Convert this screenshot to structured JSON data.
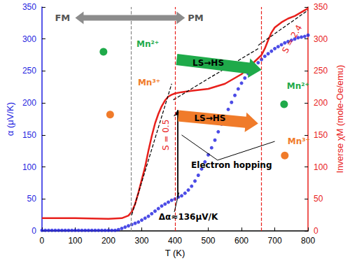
{
  "chart_data": {
    "type": "line",
    "x_label": "T (K)",
    "y_label": "α (μV/K)",
    "y2_label": "Inverse χM (mole-Oe/emu)",
    "xlim": [
      0,
      800
    ],
    "xticks": [
      0,
      100,
      200,
      300,
      400,
      500,
      600,
      700,
      800
    ],
    "ylim": [
      0,
      350
    ],
    "yticks": [
      0,
      50,
      100,
      150,
      200,
      250,
      300,
      350
    ],
    "y2lim": [
      0,
      350
    ],
    "y2ticks": [
      0,
      50,
      100,
      150,
      200,
      250,
      300,
      350
    ],
    "grid": false,
    "series": [
      {
        "type": "scatter",
        "color": "#1f1fe0",
        "marker": "circle",
        "axis": "y",
        "x": [
          0,
          10,
          20,
          30,
          40,
          50,
          60,
          70,
          80,
          90,
          100,
          110,
          120,
          130,
          140,
          150,
          160,
          170,
          180,
          190,
          200,
          210,
          220,
          230,
          240,
          250,
          260,
          270,
          280,
          290,
          300,
          310,
          320,
          330,
          340,
          350,
          360,
          370,
          380,
          390,
          400,
          410,
          420,
          430,
          440,
          450,
          460,
          470,
          480,
          490,
          500,
          510,
          520,
          530,
          540,
          550,
          560,
          570,
          580,
          590,
          600,
          610,
          620,
          630,
          640,
          650,
          660,
          670,
          680,
          690,
          700,
          710,
          720,
          730,
          740,
          750,
          760,
          770,
          780,
          790,
          800
        ],
        "values": [
          1,
          1,
          1,
          1,
          1,
          1,
          1,
          1,
          1,
          1,
          1,
          1,
          1,
          1,
          1,
          1,
          1,
          1,
          1,
          1,
          1,
          1,
          1,
          2,
          4,
          6,
          8,
          10,
          12,
          14,
          17,
          20,
          23,
          27,
          31,
          35,
          39,
          42,
          45,
          48,
          50,
          53,
          55,
          59,
          64,
          70,
          78,
          87,
          97,
          108,
          119,
          130,
          142,
          155,
          167,
          179,
          190,
          201,
          212,
          222,
          231,
          239,
          246,
          252,
          258,
          263,
          268,
          273,
          277,
          281,
          285,
          288,
          291,
          294,
          296,
          298,
          300,
          302,
          303,
          304,
          306
        ]
      },
      {
        "type": "line",
        "color": "#e8201c",
        "line_style": "solid",
        "axis": "y2",
        "x": [
          0,
          100,
          200,
          240,
          260,
          270,
          280,
          290,
          300,
          310,
          320,
          330,
          340,
          350,
          360,
          370,
          380,
          390,
          400,
          420,
          450,
          500,
          550,
          600,
          620,
          640,
          660,
          670,
          680,
          690,
          700,
          720,
          740,
          760,
          780,
          800
        ],
        "values": [
          20,
          20,
          19,
          20,
          24,
          30,
          42,
          60,
          80,
          100,
          125,
          148,
          168,
          183,
          195,
          204,
          210,
          213,
          215,
          217,
          219,
          222,
          230,
          245,
          255,
          265,
          275,
          285,
          298,
          310,
          318,
          326,
          332,
          336,
          342,
          348
        ]
      },
      {
        "type": "line",
        "color": "#000000",
        "line_style": "dashed",
        "axis": "y2",
        "x": [
          270,
          390
        ],
        "values": [
          25,
          230
        ]
      },
      {
        "type": "line",
        "color": "#000000",
        "line_style": "dashed",
        "axis": "y2",
        "x": [
          395,
          650
        ],
        "values": [
          205,
          285
        ]
      },
      {
        "type": "line",
        "color": "#000000",
        "line_style": "dashed",
        "axis": "y2",
        "x": [
          650,
          800
        ],
        "values": [
          290,
          345
        ]
      }
    ],
    "vlines": [
      {
        "x": 268,
        "color": "#888888",
        "line_style": "dashed"
      },
      {
        "x": 400,
        "color": "#e8201c",
        "line_style": "dashed"
      },
      {
        "x": 660,
        "color": "#e8201c",
        "line_style": "dashed"
      }
    ],
    "delta": {
      "x": 408,
      "from": 53,
      "to": 189,
      "label": "Δα≈136μV/K",
      "color": "#000000"
    },
    "annotations": [
      {
        "text": "FM",
        "color": "#555555"
      },
      {
        "text": "PM",
        "color": "#555555"
      },
      {
        "text": "S = 0.5",
        "color": "#e8201c"
      },
      {
        "text": "S = 2.4",
        "color": "#e8201c"
      },
      {
        "text": "LS→HS",
        "color": "#1faa4a"
      },
      {
        "text": "LS→HS",
        "color": "#f07b2a"
      },
      {
        "text": "Mn²⁺",
        "color": "#1faa4a"
      },
      {
        "text": "Mn³⁺",
        "color": "#f07b2a"
      },
      {
        "text": "Mn²⁺",
        "color": "#1faa4a"
      },
      {
        "text": "Mn³⁺",
        "color": "#f07b2a"
      },
      {
        "text": "Electron hopping",
        "color": "#000000"
      }
    ]
  }
}
